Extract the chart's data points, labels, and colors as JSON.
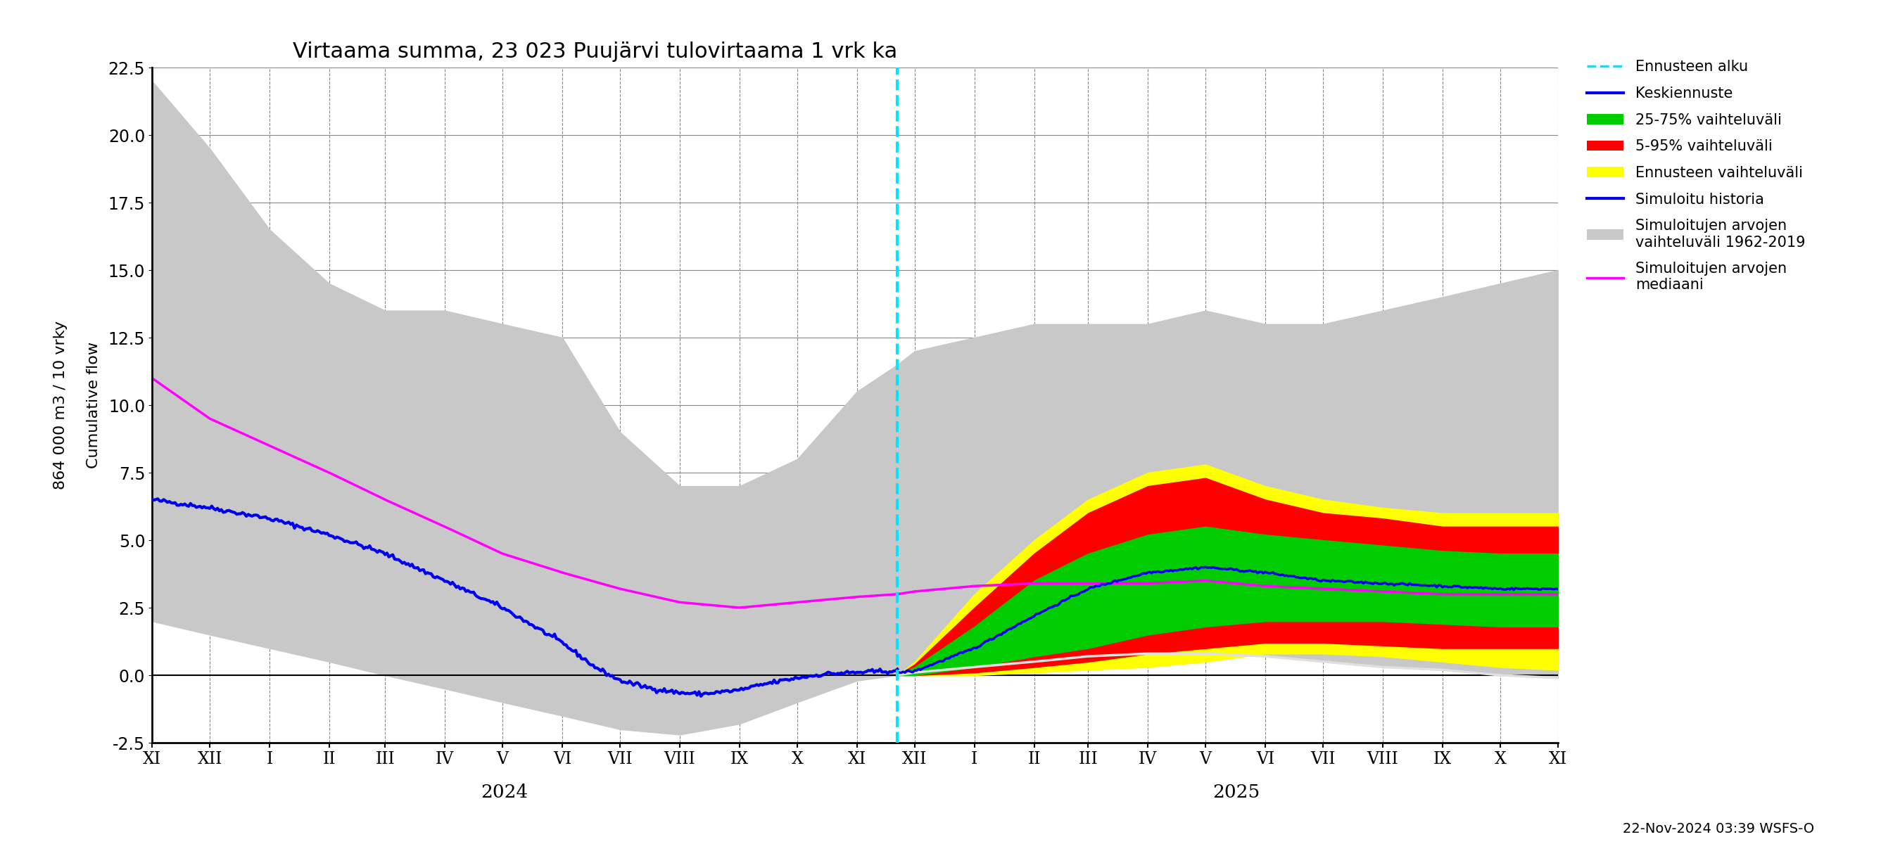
{
  "title": "Virtaama summa, 23 023 Puujärvi tulovirtaama 1 vrk ka",
  "ylabel": "864 000 m3 / 10 vrky\nCumulative flow",
  "ylim": [
    -2.5,
    22.5
  ],
  "yticks": [
    -2.5,
    0.0,
    2.5,
    5.0,
    7.5,
    10.0,
    12.5,
    15.0,
    17.5,
    20.0,
    22.5
  ],
  "footnote": "22-Nov-2024 03:39 WSFS-O",
  "month_labels": [
    "XI",
    "XII",
    "I",
    "II",
    "III",
    "IV",
    "V",
    "VI",
    "VII",
    "VIII",
    "IX",
    "X",
    "XI",
    "XII",
    "I",
    "II",
    "III",
    "IV",
    "V",
    "VI",
    "VII",
    "VIII",
    "IX",
    "X",
    "XI"
  ],
  "year_labels": [
    "2024",
    "2025"
  ],
  "cyan_color": "#00e5ff",
  "blue_color": "#0000ee",
  "magenta_color": "#ff00ff",
  "gray_color": "#c8c8c8",
  "yellow_color": "#ffff00",
  "red_color": "#ff0000",
  "green_color": "#00cc00",
  "white_color": "#ffffff"
}
